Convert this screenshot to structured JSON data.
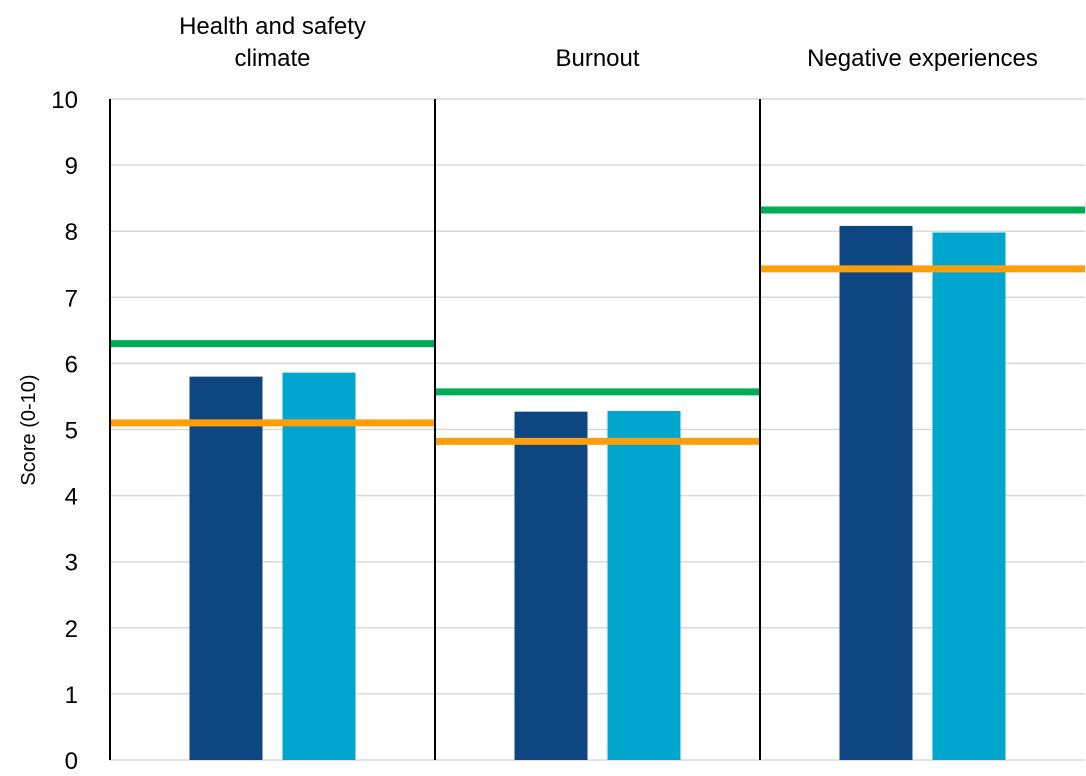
{
  "chart_data": {
    "type": "bar",
    "title": "",
    "xlabel": "",
    "ylabel": "Score (0-10)",
    "ylim": [
      0,
      10
    ],
    "yticks": [
      "0",
      "1",
      "2",
      "3",
      "4",
      "5",
      "6",
      "7",
      "8",
      "9",
      "10"
    ],
    "grid": true,
    "categories": [
      [
        "Health and safety",
        "climate"
      ],
      [
        "Burnout"
      ],
      [
        "Negative experiences"
      ]
    ],
    "series": [
      {
        "color": "#0d4680",
        "values": [
          5.8,
          5.27,
          8.08
        ]
      },
      {
        "color": "#00a6ce",
        "values": [
          5.86,
          5.28,
          7.98
        ]
      }
    ],
    "reference_lines": [
      {
        "color": "#00ad57",
        "values": [
          6.3,
          5.57,
          8.32
        ]
      },
      {
        "color": "#ff9e0b",
        "values": [
          5.1,
          4.82,
          7.43
        ]
      }
    ]
  }
}
